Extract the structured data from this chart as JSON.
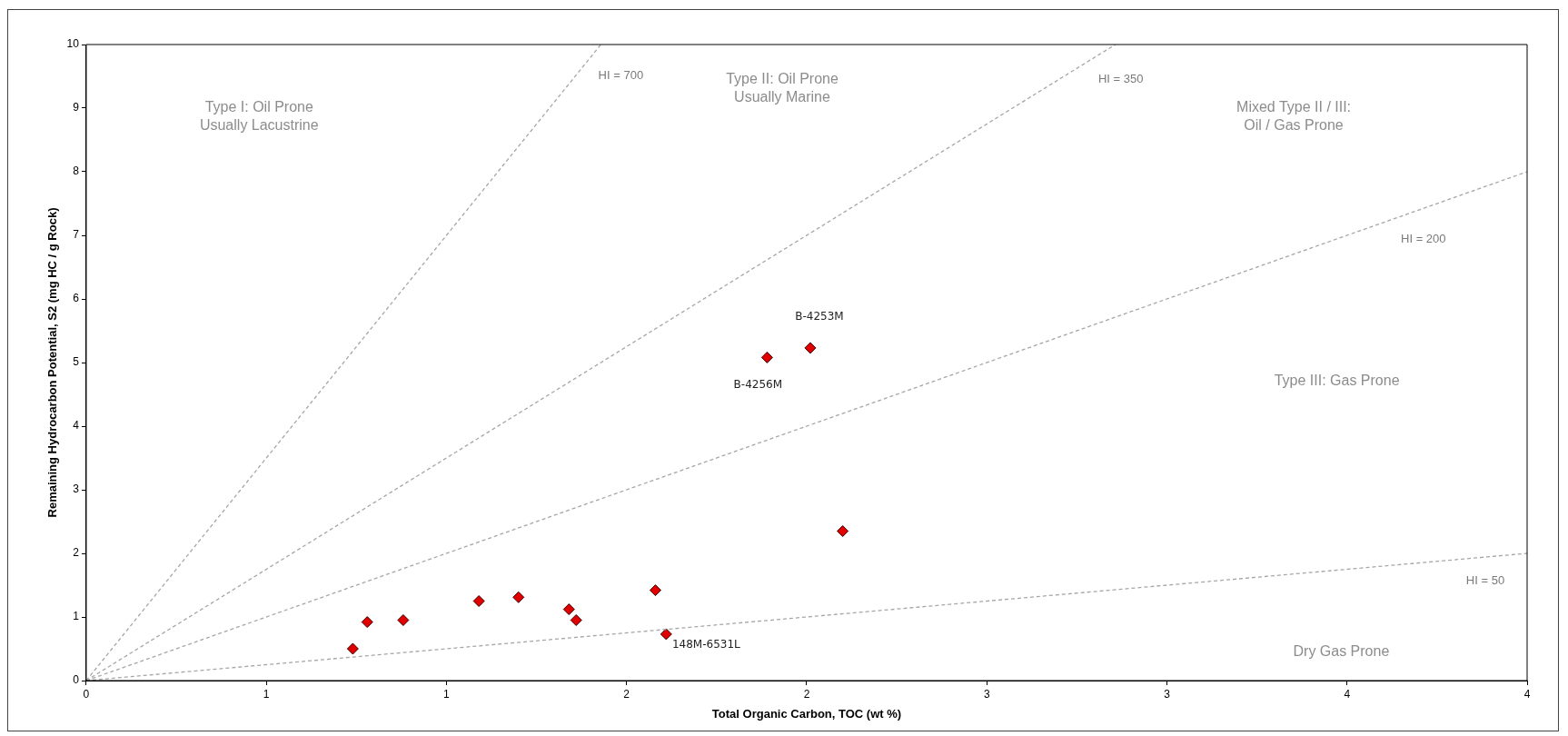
{
  "chart_data": {
    "type": "scatter",
    "xlabel": "Total Organic Carbon, TOC (wt %)",
    "ylabel": "Remaining Hydrocarbon Potential, S2 (mg HC / g Rock)",
    "xlim": [
      0,
      4
    ],
    "ylim": [
      0,
      10
    ],
    "xticks": [
      0,
      {
        "value": 0.5,
        "label": "1"
      },
      1,
      {
        "value": 1.5,
        "label": "2"
      },
      2,
      {
        "value": 2.5,
        "label": "3"
      },
      3,
      {
        "value": 3.5,
        "label": "4"
      },
      4
    ],
    "yticks": [
      0,
      1,
      2,
      3,
      4,
      5,
      6,
      7,
      8,
      9,
      10
    ],
    "grid": false,
    "legend": false,
    "marker": "diamond",
    "series": [
      {
        "type": "line",
        "color": "#a6a6a6",
        "line_style": "dashed",
        "marker": "none",
        "x": [
          0,
          1.4286
        ],
        "values": [
          0,
          10
        ]
      },
      {
        "type": "line",
        "color": "#a6a6a6",
        "line_style": "dashed",
        "marker": "none",
        "x": [
          0,
          2.857
        ],
        "values": [
          0,
          10
        ]
      },
      {
        "type": "line",
        "color": "#a6a6a6",
        "line_style": "dashed",
        "marker": "none",
        "x": [
          0,
          4
        ],
        "values": [
          0,
          8
        ]
      },
      {
        "type": "line",
        "color": "#a6a6a6",
        "line_style": "dashed",
        "marker": "none",
        "x": [
          0,
          4
        ],
        "values": [
          0,
          2
        ]
      },
      {
        "type": "scatter",
        "color": "#e00000",
        "x": [
          0.74,
          0.78,
          0.88,
          1.09,
          1.2,
          1.34,
          1.36,
          1.58,
          1.61,
          1.89,
          2.01,
          2.1
        ],
        "values": [
          0.5,
          0.92,
          0.95,
          1.25,
          1.31,
          1.12,
          0.95,
          1.42,
          0.73,
          5.08,
          5.23,
          2.35
        ]
      }
    ],
    "annotations": [
      "Type I: Oil Prone\nUsually Lacustrine",
      "Type II: Oil Prone\nUsually Marine",
      "Mixed Type II / III:\nOil / Gas Prone",
      "Type III: Gas Prone",
      "Dry Gas Prone",
      "HI = 700",
      "HI = 350",
      "HI = 200",
      "HI = 50",
      {
        "text": "B-4253M",
        "x": 2.01,
        "y": 5.23
      },
      {
        "text": "B-4256M",
        "x": 1.89,
        "y": 5.08
      },
      {
        "text": "148M-6531L",
        "x": 1.61,
        "y": 0.73
      }
    ]
  }
}
